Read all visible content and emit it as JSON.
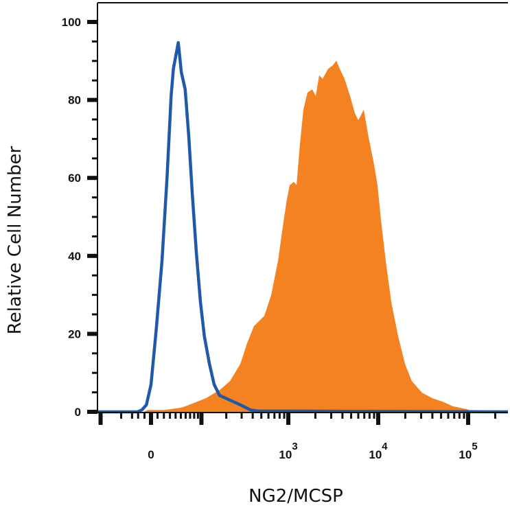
{
  "chart_data": {
    "type": "area",
    "title": "",
    "xlabel": "NG2/MCSP",
    "ylabel": "Relative Cell Number",
    "x_scale": "biexponential",
    "xlim": [
      -109,
      277000
    ],
    "ylim": [
      0,
      100
    ],
    "grid": false,
    "x_ticks": [
      {
        "value": 0,
        "base": "0",
        "exp": ""
      },
      {
        "value": 1000,
        "base": "10",
        "exp": "3"
      },
      {
        "value": 10000,
        "base": "10",
        "exp": "4"
      },
      {
        "value": 100000,
        "base": "10",
        "exp": "5"
      }
    ],
    "y_ticks": [
      {
        "value": 0,
        "label": "0"
      },
      {
        "value": 20,
        "label": "20"
      },
      {
        "value": 40,
        "label": "40"
      },
      {
        "value": 60,
        "label": "60"
      },
      {
        "value": 80,
        "label": "80"
      },
      {
        "value": 100,
        "label": "100"
      }
    ],
    "series": [
      {
        "style": "filled",
        "color": "#F58220",
        "x": [
          -11,
          -5,
          21,
          52,
          75,
          114,
          167,
          221,
          290,
          346,
          413,
          539,
          643,
          767,
          868,
          965,
          1035,
          1152,
          1233,
          1348,
          1472,
          1635,
          1849,
          2020,
          2206,
          2409,
          2772,
          3134,
          3422,
          3737,
          4225,
          4865,
          5503,
          6010,
          6914,
          7812,
          8996,
          9829,
          10730,
          12130,
          13960,
          16640,
          19840,
          23630,
          30780,
          40100,
          52120,
          67890,
          96390,
          114950
        ],
        "y": [
          0,
          0.5,
          0.5,
          1.1,
          2.1,
          3.5,
          5.6,
          7.9,
          12.3,
          17.6,
          22.0,
          24.6,
          29.9,
          38.7,
          47.5,
          54.6,
          58.1,
          59.0,
          58.1,
          68.7,
          77.5,
          81.9,
          82.7,
          81.0,
          86.3,
          85.4,
          88.0,
          88.9,
          90.1,
          88.0,
          85.4,
          81.0,
          76.6,
          74.8,
          77.5,
          70.4,
          63.4,
          58.1,
          49.3,
          38.7,
          28.2,
          19.4,
          12.3,
          7.9,
          4.9,
          3.5,
          2.6,
          1.4,
          0.7,
          0
        ]
      },
      {
        "style": "line",
        "color": "#1E5AA8",
        "x": [
          -109,
          -21,
          -14,
          -7,
          0,
          8,
          17,
          25,
          32,
          36,
          45,
          51,
          59,
          67,
          75,
          86,
          97,
          109,
          126,
          144,
          167,
          221,
          290,
          378,
          452,
          1000,
          277000
        ],
        "y": [
          0,
          0,
          0.5,
          1.8,
          7.0,
          21.1,
          38.7,
          59.9,
          81.0,
          88.0,
          94.7,
          87.1,
          82.7,
          70.4,
          56.3,
          40.5,
          28.2,
          19.4,
          12.3,
          7.0,
          4.2,
          3.0,
          1.8,
          0.5,
          0.2,
          0.2,
          0
        ]
      }
    ]
  }
}
